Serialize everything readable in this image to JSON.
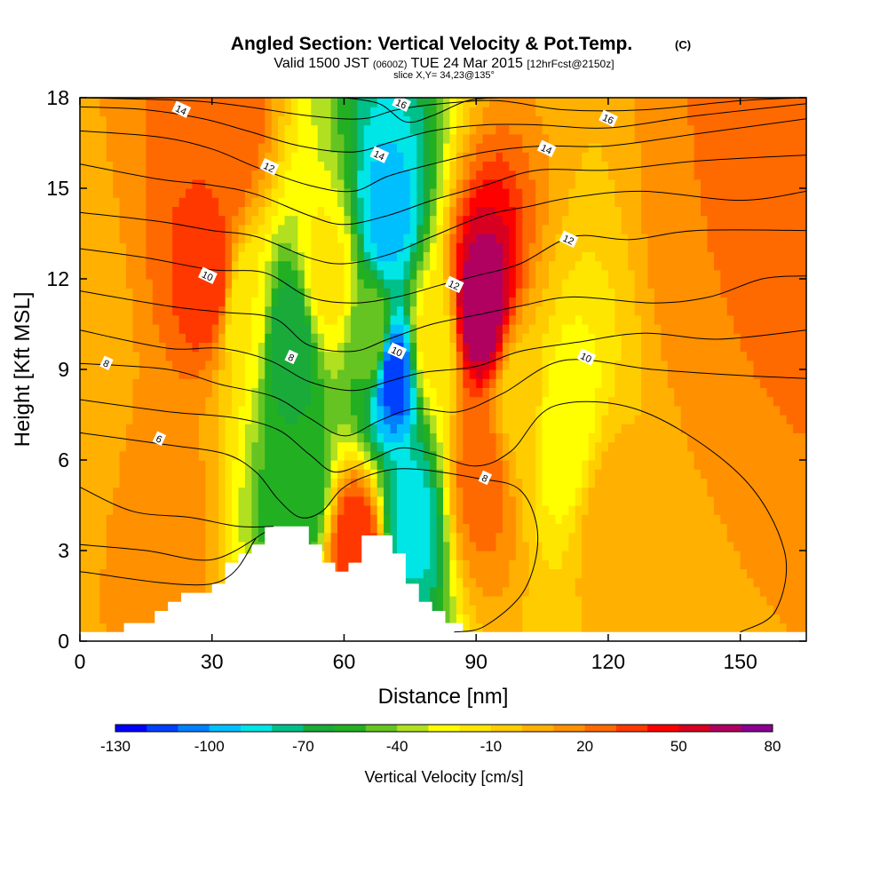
{
  "chart_data": {
    "type": "heatmap",
    "title": "Angled Section: Vertical Velocity & Pot.Temp.",
    "title_unit": "(C)",
    "subtitle": {
      "valid": "Valid 1500 JST",
      "utc": "(0600Z)",
      "date": "TUE 24 Mar 2015",
      "forecast": "[12hrFcst@2150z]"
    },
    "slice_label": "slice X,Y= 34,23@135°",
    "xlabel": "Distance [nm]",
    "ylabel": "Height [Kft MSL]",
    "xlim": [
      0,
      165
    ],
    "ylim": [
      0,
      18
    ],
    "x_ticks": [
      {
        "value": 0,
        "label": "0"
      },
      {
        "value": 30,
        "label": "30"
      },
      {
        "value": 60,
        "label": "60"
      },
      {
        "value": 90,
        "label": "90"
      },
      {
        "value": 120,
        "label": "120"
      },
      {
        "value": 150,
        "label": "150"
      }
    ],
    "y_ticks": [
      {
        "value": 0,
        "label": "0"
      },
      {
        "value": 3,
        "label": "3"
      },
      {
        "value": 6,
        "label": "6"
      },
      {
        "value": 9,
        "label": "9"
      },
      {
        "value": 12,
        "label": "12"
      },
      {
        "value": 15,
        "label": "15"
      },
      {
        "value": 18,
        "label": "18"
      }
    ],
    "colorbar": {
      "label": "Vertical Velocity [cm/s]",
      "min": -130,
      "max": 80,
      "step": 10,
      "colors": [
        "#0000ff",
        "#0040ff",
        "#0080ff",
        "#00bfff",
        "#00e5e5",
        "#00c08a",
        "#1aaa3a",
        "#22b022",
        "#66c422",
        "#b0e020",
        "#ffff00",
        "#ffe600",
        "#ffcc00",
        "#ffb000",
        "#ff9000",
        "#ff6a00",
        "#ff3800",
        "#ff0000",
        "#d80020",
        "#b00060",
        "#8a0090"
      ],
      "tick_labels": [
        {
          "value": -130,
          "label": "-130"
        },
        {
          "value": -100,
          "label": "-100"
        },
        {
          "value": -70,
          "label": "-70"
        },
        {
          "value": -40,
          "label": "-40"
        },
        {
          "value": -10,
          "label": "-10"
        },
        {
          "value": 20,
          "label": "20"
        },
        {
          "value": 50,
          "label": "50"
        },
        {
          "value": 80,
          "label": "80"
        }
      ]
    },
    "velocity_features": [
      {
        "x": 0,
        "y": 9,
        "value": 5
      },
      {
        "x": 20,
        "y": 4,
        "value": 15
      },
      {
        "x": 30,
        "y": 12,
        "value": 40
      },
      {
        "x": 33,
        "y": 16.5,
        "value": 30
      },
      {
        "x": 37,
        "y": 11,
        "value": -20
      },
      {
        "x": 48,
        "y": 10,
        "value": -70
      },
      {
        "x": 50,
        "y": 5,
        "value": -60
      },
      {
        "x": 56,
        "y": 12,
        "value": -15
      },
      {
        "x": 63,
        "y": 3,
        "value": 40
      },
      {
        "x": 67,
        "y": 10,
        "value": -40
      },
      {
        "x": 71,
        "y": 9,
        "value": -120
      },
      {
        "x": 70,
        "y": 14,
        "value": -95
      },
      {
        "x": 75,
        "y": 4,
        "value": -85
      },
      {
        "x": 80,
        "y": 10,
        "value": -15
      },
      {
        "x": 91,
        "y": 11,
        "value": 70
      },
      {
        "x": 91,
        "y": 5.5,
        "value": 25
      },
      {
        "x": 100,
        "y": 8,
        "value": -5
      },
      {
        "x": 110,
        "y": 7,
        "value": -30
      },
      {
        "x": 120,
        "y": 4,
        "value": 5
      },
      {
        "x": 145,
        "y": 13,
        "value": 20
      },
      {
        "x": 160,
        "y": 17.5,
        "value": 30
      }
    ],
    "terrain": [
      [
        0,
        0.3
      ],
      [
        10,
        0.3
      ],
      [
        10,
        0.6
      ],
      [
        17,
        0.6
      ],
      [
        17,
        1.0
      ],
      [
        20,
        1.0
      ],
      [
        20,
        1.3
      ],
      [
        23,
        1.3
      ],
      [
        23,
        1.6
      ],
      [
        30,
        1.6
      ],
      [
        30,
        1.9
      ],
      [
        33,
        1.9
      ],
      [
        33,
        2.6
      ],
      [
        36,
        2.6
      ],
      [
        36,
        2.9
      ],
      [
        39,
        2.9
      ],
      [
        39,
        3.2
      ],
      [
        42,
        3.2
      ],
      [
        42,
        3.8
      ],
      [
        52,
        3.8
      ],
      [
        52,
        3.2
      ],
      [
        55,
        3.2
      ],
      [
        55,
        2.6
      ],
      [
        58,
        2.6
      ],
      [
        58,
        2.3
      ],
      [
        61,
        2.3
      ],
      [
        61,
        2.6
      ],
      [
        64,
        2.6
      ],
      [
        64,
        3.5
      ],
      [
        71,
        3.5
      ],
      [
        71,
        2.9
      ],
      [
        74,
        2.9
      ],
      [
        74,
        1.9
      ],
      [
        77,
        1.9
      ],
      [
        77,
        1.3
      ],
      [
        80,
        1.3
      ],
      [
        80,
        1.0
      ],
      [
        83,
        1.0
      ],
      [
        83,
        0.6
      ],
      [
        87,
        0.6
      ],
      [
        87,
        0.3
      ],
      [
        165,
        0.3
      ]
    ],
    "theta_contours": [
      {
        "points": [
          [
            0,
            2.3
          ],
          [
            30,
            1.9
          ],
          [
            40,
            3.4
          ]
        ]
      },
      {
        "points": [
          [
            0,
            3.2
          ],
          [
            15,
            3.0
          ],
          [
            30,
            2.7
          ],
          [
            42,
            3.6
          ]
        ]
      },
      {
        "points": [
          [
            0,
            5.1
          ],
          [
            12,
            4.3
          ],
          [
            25,
            4.1
          ],
          [
            36,
            3.8
          ],
          [
            44,
            3.8
          ]
        ]
      },
      {
        "points": [
          [
            0,
            6.9
          ],
          [
            20,
            6.5
          ],
          [
            33,
            6.2
          ],
          [
            40,
            5.6
          ],
          [
            45,
            4.7
          ],
          [
            50,
            4.1
          ],
          [
            55,
            4.3
          ],
          [
            60,
            5.1
          ],
          [
            68,
            5.6
          ],
          [
            76,
            5.7
          ],
          [
            90,
            5.4
          ],
          [
            100,
            5.0
          ],
          [
            104,
            3.5
          ],
          [
            101,
            1.7
          ],
          [
            92,
            0.5
          ],
          [
            85,
            0.3
          ]
        ]
      },
      {
        "points": [
          [
            0,
            8.0
          ],
          [
            20,
            7.6
          ],
          [
            35,
            7.4
          ],
          [
            45,
            7.0
          ],
          [
            52,
            6.2
          ],
          [
            58,
            5.6
          ],
          [
            66,
            6.0
          ],
          [
            73,
            6.4
          ],
          [
            80,
            6.2
          ],
          [
            90,
            5.8
          ],
          [
            98,
            6.3
          ],
          [
            108,
            7.8
          ],
          [
            128,
            7.6
          ],
          [
            150,
            5.5
          ],
          [
            160,
            3.0
          ],
          [
            158,
            1.0
          ],
          [
            150,
            0.3
          ]
        ]
      },
      {
        "points": [
          [
            0,
            9.2
          ],
          [
            20,
            9.0
          ],
          [
            32,
            8.5
          ],
          [
            44,
            8.1
          ],
          [
            52,
            7.4
          ],
          [
            60,
            6.8
          ],
          [
            68,
            7.3
          ],
          [
            76,
            7.7
          ],
          [
            86,
            7.6
          ],
          [
            96,
            8.2
          ],
          [
            110,
            9.3
          ],
          [
            130,
            9.0
          ],
          [
            150,
            8.8
          ],
          [
            165,
            8.7
          ]
        ]
      },
      {
        "points": [
          [
            0,
            10.3
          ],
          [
            20,
            9.7
          ],
          [
            32,
            9.7
          ],
          [
            43,
            9.3
          ],
          [
            52,
            8.6
          ],
          [
            62,
            8.3
          ],
          [
            70,
            8.6
          ],
          [
            78,
            8.9
          ],
          [
            90,
            9.1
          ],
          [
            100,
            9.6
          ],
          [
            113,
            9.9
          ],
          [
            128,
            10.2
          ],
          [
            145,
            10.0
          ],
          [
            165,
            10.3
          ]
        ]
      },
      {
        "points": [
          [
            0,
            11.6
          ],
          [
            20,
            11.1
          ],
          [
            32,
            10.9
          ],
          [
            44,
            10.7
          ],
          [
            52,
            9.8
          ],
          [
            62,
            9.6
          ],
          [
            70,
            10.0
          ],
          [
            80,
            10.5
          ],
          [
            90,
            10.8
          ],
          [
            100,
            11.1
          ],
          [
            112,
            11.4
          ],
          [
            130,
            11.2
          ],
          [
            143,
            11.4
          ],
          [
            155,
            12.0
          ],
          [
            165,
            12.1
          ]
        ]
      },
      {
        "points": [
          [
            0,
            13.0
          ],
          [
            15,
            12.7
          ],
          [
            30,
            12.3
          ],
          [
            42,
            12.2
          ],
          [
            52,
            11.4
          ],
          [
            62,
            11.2
          ],
          [
            72,
            11.4
          ],
          [
            82,
            11.8
          ],
          [
            90,
            12.1
          ],
          [
            100,
            12.5
          ],
          [
            112,
            13.4
          ],
          [
            125,
            13.3
          ],
          [
            140,
            13.6
          ],
          [
            165,
            13.6
          ]
        ]
      },
      {
        "points": [
          [
            0,
            14.2
          ],
          [
            18,
            13.9
          ],
          [
            30,
            13.6
          ],
          [
            40,
            13.4
          ],
          [
            52,
            12.7
          ],
          [
            60,
            12.5
          ],
          [
            70,
            12.8
          ],
          [
            80,
            13.4
          ],
          [
            92,
            14.1
          ],
          [
            102,
            14.4
          ],
          [
            112,
            14.7
          ],
          [
            128,
            14.9
          ],
          [
            150,
            14.6
          ],
          [
            165,
            14.9
          ]
        ]
      },
      {
        "points": [
          [
            0,
            15.8
          ],
          [
            18,
            15.3
          ],
          [
            30,
            15.1
          ],
          [
            40,
            14.8
          ],
          [
            52,
            14.1
          ],
          [
            60,
            13.8
          ],
          [
            70,
            14.1
          ],
          [
            80,
            14.6
          ],
          [
            92,
            15.1
          ],
          [
            104,
            15.6
          ],
          [
            120,
            15.6
          ],
          [
            140,
            15.9
          ],
          [
            165,
            16.1
          ]
        ]
      },
      {
        "points": [
          [
            0,
            16.9
          ],
          [
            18,
            16.7
          ],
          [
            30,
            16.3
          ],
          [
            40,
            15.7
          ],
          [
            52,
            15.1
          ],
          [
            62,
            14.9
          ],
          [
            70,
            15.4
          ],
          [
            80,
            15.8
          ],
          [
            92,
            16.2
          ],
          [
            105,
            16.4
          ],
          [
            120,
            16.4
          ],
          [
            140,
            16.8
          ],
          [
            165,
            17.3
          ]
        ]
      },
      {
        "points": [
          [
            0,
            17.7
          ],
          [
            15,
            17.6
          ],
          [
            28,
            17.3
          ],
          [
            38,
            16.9
          ],
          [
            50,
            16.4
          ],
          [
            62,
            16.2
          ],
          [
            70,
            16.5
          ],
          [
            80,
            16.9
          ],
          [
            92,
            17.1
          ],
          [
            104,
            17.1
          ],
          [
            120,
            17.0
          ],
          [
            140,
            17.4
          ],
          [
            165,
            17.8
          ]
        ]
      },
      {
        "points": [
          [
            0,
            18.0
          ],
          [
            25,
            17.9
          ],
          [
            38,
            17.7
          ],
          [
            52,
            17.4
          ],
          [
            64,
            17.3
          ],
          [
            72,
            17.6
          ],
          [
            82,
            17.8
          ],
          [
            95,
            17.9
          ],
          [
            110,
            17.6
          ],
          [
            128,
            17.6
          ],
          [
            150,
            17.9
          ],
          [
            165,
            18.0
          ]
        ]
      },
      {
        "points": [
          [
            60,
            18.0
          ],
          [
            68,
            17.8
          ],
          [
            74,
            17.2
          ],
          [
            80,
            17.4
          ],
          [
            88,
            17.9
          ],
          [
            95,
            18.0
          ]
        ]
      }
    ],
    "contour_labels": [
      {
        "x": 6,
        "y": 9.2,
        "label": "8"
      },
      {
        "x": 18,
        "y": 6.7,
        "label": "6"
      },
      {
        "x": 23,
        "y": 17.6,
        "label": "14"
      },
      {
        "x": 29,
        "y": 12.1,
        "label": "10"
      },
      {
        "x": 43,
        "y": 15.7,
        "label": "12"
      },
      {
        "x": 48,
        "y": 9.4,
        "label": "8"
      },
      {
        "x": 68,
        "y": 16.1,
        "label": "14"
      },
      {
        "x": 72,
        "y": 9.6,
        "label": "10"
      },
      {
        "x": 73,
        "y": 17.8,
        "label": "16"
      },
      {
        "x": 85,
        "y": 11.8,
        "label": "12"
      },
      {
        "x": 92,
        "y": 5.4,
        "label": "8"
      },
      {
        "x": 115,
        "y": 9.4,
        "label": "10"
      },
      {
        "x": 106,
        "y": 16.3,
        "label": "14"
      },
      {
        "x": 111,
        "y": 13.3,
        "label": "12"
      },
      {
        "x": 120,
        "y": 17.3,
        "label": "16"
      }
    ]
  }
}
